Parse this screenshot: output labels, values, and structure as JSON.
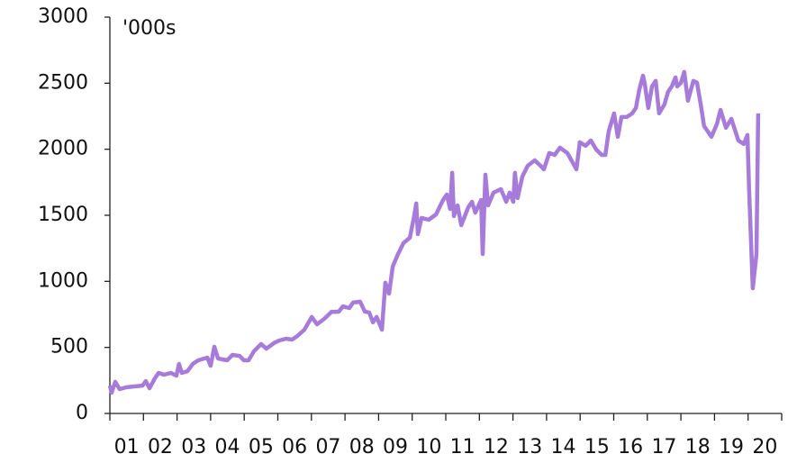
{
  "chart_data": {
    "type": "line",
    "annotation": "'000s",
    "categories": [
      "01",
      "02",
      "03",
      "04",
      "05",
      "06",
      "07",
      "08",
      "09",
      "10",
      "11",
      "12",
      "13",
      "14",
      "15",
      "16",
      "17",
      "18",
      "19",
      "20"
    ],
    "xlim": [
      1,
      21
    ],
    "xticks": [
      1,
      2,
      3,
      4,
      5,
      6,
      7,
      8,
      9,
      10,
      11,
      12,
      13,
      14,
      15,
      16,
      17,
      18,
      19,
      20,
      21
    ],
    "ylim": [
      0,
      3000
    ],
    "yticks": [
      0,
      500,
      1000,
      1500,
      2000,
      2500,
      3000
    ],
    "series": [
      {
        "color": "#a77bd9",
        "x": [
          1.0,
          1.05,
          1.16,
          1.29,
          1.48,
          1.75,
          1.97,
          2.07,
          2.18,
          2.34,
          2.45,
          2.61,
          2.82,
          2.98,
          3.06,
          3.14,
          3.31,
          3.47,
          3.63,
          3.9,
          4.0,
          4.11,
          4.22,
          4.49,
          4.65,
          4.86,
          4.99,
          5.13,
          5.29,
          5.5,
          5.66,
          5.88,
          6.04,
          6.25,
          6.42,
          6.58,
          6.79,
          7.01,
          7.17,
          7.38,
          7.6,
          7.81,
          7.94,
          8.13,
          8.24,
          8.45,
          8.59,
          8.72,
          8.83,
          8.94,
          9.1,
          9.2,
          9.31,
          9.42,
          9.58,
          9.74,
          9.93,
          10.06,
          10.12,
          10.17,
          10.28,
          10.49,
          10.71,
          10.92,
          11.03,
          11.13,
          11.19,
          11.24,
          11.35,
          11.46,
          11.67,
          11.78,
          11.88,
          12.05,
          12.1,
          12.18,
          12.26,
          12.42,
          12.64,
          12.8,
          12.9,
          13.01,
          13.06,
          13.14,
          13.28,
          13.44,
          13.65,
          13.82,
          13.92,
          14.08,
          14.24,
          14.4,
          14.62,
          14.89,
          14.99,
          15.16,
          15.32,
          15.48,
          15.64,
          15.75,
          15.85,
          16.01,
          16.12,
          16.23,
          16.39,
          16.55,
          16.66,
          16.76,
          16.87,
          16.92,
          17.03,
          17.14,
          17.25,
          17.35,
          17.51,
          17.62,
          17.73,
          17.84,
          17.89,
          18.0,
          18.1,
          18.21,
          18.37,
          18.48,
          18.59,
          18.69,
          18.91,
          19.07,
          19.18,
          19.34,
          19.5,
          19.71,
          19.87,
          19.98,
          20.03,
          20.14,
          20.25,
          20.3
        ],
        "values": [
          211,
          157,
          239,
          184,
          198,
          205,
          211,
          245,
          191,
          266,
          307,
          293,
          307,
          286,
          375,
          307,
          320,
          375,
          402,
          423,
          361,
          505,
          416,
          402,
          443,
          436,
          402,
          402,
          471,
          525,
          491,
          532,
          552,
          566,
          559,
          586,
          634,
          730,
          675,
          716,
          770,
          770,
          811,
          798,
          839,
          846,
          771,
          764,
          689,
          730,
          634,
          989,
          907,
          1112,
          1207,
          1289,
          1330,
          1493,
          1589,
          1357,
          1480,
          1466,
          1507,
          1616,
          1657,
          1548,
          1821,
          1494,
          1575,
          1425,
          1561,
          1602,
          1520,
          1616,
          1207,
          1807,
          1575,
          1671,
          1698,
          1602,
          1671,
          1602,
          1821,
          1630,
          1793,
          1875,
          1916,
          1875,
          1848,
          1971,
          1957,
          2012,
          1971,
          1848,
          2053,
          2026,
          2066,
          1998,
          1957,
          1957,
          2135,
          2271,
          2094,
          2244,
          2244,
          2271,
          2312,
          2448,
          2557,
          2503,
          2312,
          2476,
          2517,
          2271,
          2339,
          2435,
          2476,
          2544,
          2476,
          2503,
          2585,
          2367,
          2517,
          2503,
          2339,
          2176,
          2094,
          2189,
          2298,
          2162,
          2230,
          2066,
          2039,
          2108,
          1698,
          948,
          1207,
          2271
        ]
      }
    ]
  }
}
